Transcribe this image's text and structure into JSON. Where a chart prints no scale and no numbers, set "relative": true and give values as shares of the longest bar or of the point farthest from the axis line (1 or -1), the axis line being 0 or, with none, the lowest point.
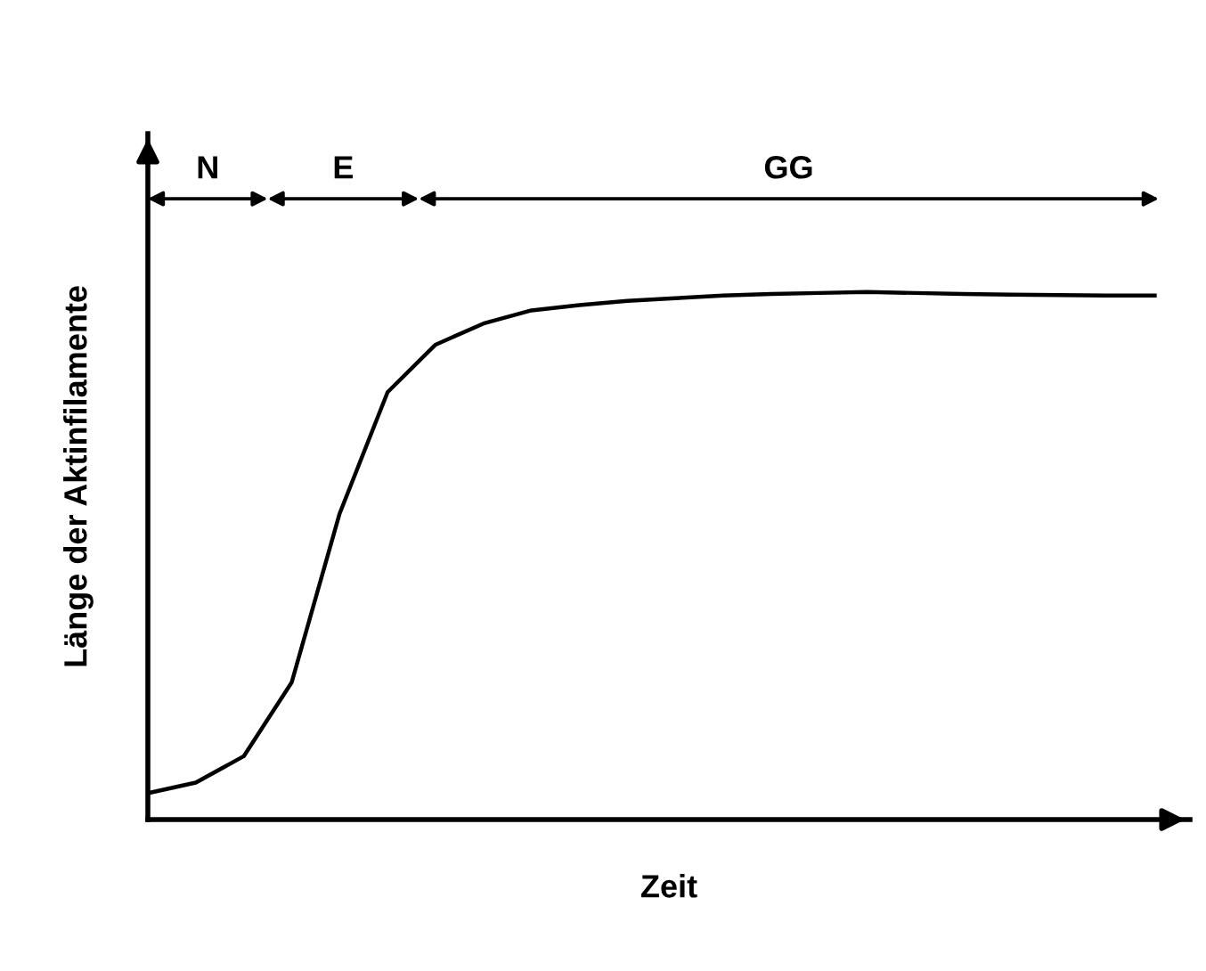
{
  "chart_data": {
    "type": "line",
    "relative": true,
    "xlabel": "Zeit",
    "ylabel": "Länge der Aktinfilamente",
    "categories": [
      null,
      null,
      null,
      null,
      null,
      null,
      null,
      null,
      null,
      null,
      null,
      null,
      null,
      null,
      null,
      null,
      null,
      null,
      null,
      null,
      null,
      null
    ],
    "series": [
      {
        "color": "#000000",
        "values": [
          0.05,
          0.07,
          0.12,
          0.26,
          0.58,
          0.81,
          0.9,
          0.94,
          0.965,
          0.975,
          0.983,
          0.988,
          0.993,
          0.996,
          0.998,
          1.0,
          0.998,
          0.996,
          0.995,
          0.994,
          0.993,
          0.993
        ]
      }
    ],
    "annotations": [
      "N",
      "E",
      "GG"
    ],
    "marker": "none",
    "line_style": "solid"
  }
}
